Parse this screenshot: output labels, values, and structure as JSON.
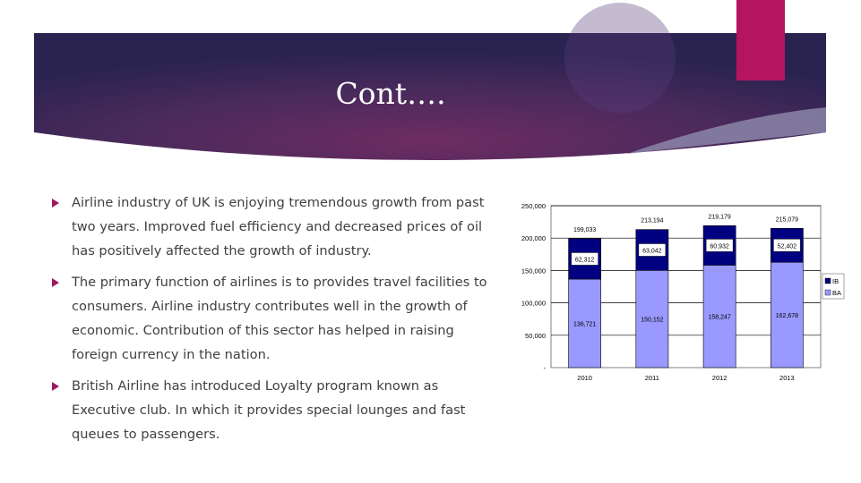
{
  "slide": {
    "title": "Cont….",
    "colors": {
      "banner_dark": "#2b2250",
      "banner_mid": "#6b2c60",
      "accent": "#b5145f",
      "bullet": "#a0185e",
      "text": "#404040"
    },
    "bullets": [
      {
        "text": "Airline industry of UK is enjoying tremendous growth from past two years. Improved fuel efficiency and decreased prices of oil has positively affected the growth of industry.",
        "icon": "triangle-bullet-icon"
      },
      {
        "text": "The primary function of airlines is to provides travel facilities to consumers. Airline industry contributes well in the growth of economic. Contribution of this sector has helped in raising foreign currency in the nation.",
        "icon": "triangle-bullet-icon"
      },
      {
        "text": "British Airline has introduced Loyalty program known as Executive club. In which it provides special lounges and fast queues to passengers.",
        "icon": "triangle-bullet-icon"
      }
    ]
  },
  "chart_data": {
    "type": "bar",
    "stacked": true,
    "categories": [
      "2010",
      "2011",
      "2012",
      "2013"
    ],
    "series": [
      {
        "name": "BA",
        "values": [
          136721,
          150152,
          158247,
          162678
        ],
        "color": "#9999ff",
        "labels": [
          "136,721",
          "150,152",
          "158,247",
          "162,678"
        ]
      },
      {
        "name": "IB",
        "values": [
          62312,
          63042,
          60932,
          52402
        ],
        "color": "#000080",
        "labels": [
          "62,312",
          "63,042",
          "60,932",
          "52,402"
        ]
      }
    ],
    "totals": [
      "199,033",
      "213,194",
      "219,179",
      "215,079"
    ],
    "ylim": [
      0,
      250000
    ],
    "yticks": [
      {
        "value": 0,
        "label": "-"
      },
      {
        "value": 50000,
        "label": "50,000"
      },
      {
        "value": 100000,
        "label": "100,000"
      },
      {
        "value": 150000,
        "label": "150,000"
      },
      {
        "value": 200000,
        "label": "200,000"
      },
      {
        "value": 250000,
        "label": "250,000"
      }
    ],
    "grid": true,
    "legend": "right",
    "title": "",
    "xlabel": "",
    "ylabel": ""
  }
}
